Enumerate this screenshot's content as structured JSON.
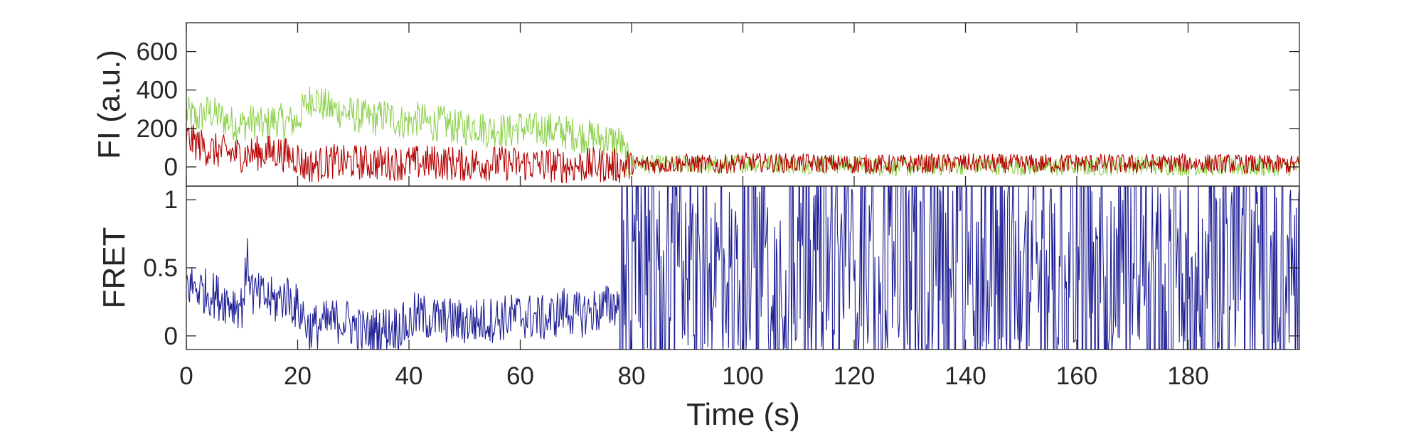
{
  "chart_data": [
    {
      "type": "line",
      "title": "",
      "xlabel": "",
      "ylabel": "FI (a.u.)",
      "xlim": [
        0,
        200
      ],
      "ylim": [
        -100,
        750
      ],
      "yticks": [
        0,
        200,
        400,
        600
      ],
      "ytick_labels": [
        "0",
        "200",
        "400",
        "600"
      ],
      "grid": false,
      "legend": "none",
      "series": [
        {
          "color": "#8fd14f",
          "x": [
            0,
            2,
            4,
            6,
            8,
            10,
            12,
            14,
            16,
            18,
            20,
            21,
            22,
            23,
            24,
            26,
            28,
            30,
            32,
            34,
            36,
            38,
            40,
            42,
            44,
            46,
            48,
            50,
            52,
            54,
            56,
            58,
            60,
            62,
            64,
            66,
            68,
            70,
            72,
            74,
            76,
            78,
            79,
            80,
            85,
            90,
            95,
            100,
            110,
            120,
            130,
            140,
            150,
            160,
            170,
            180,
            190,
            200
          ],
          "values": [
            280,
            250,
            290,
            260,
            230,
            220,
            240,
            210,
            250,
            230,
            240,
            300,
            340,
            370,
            330,
            300,
            290,
            270,
            260,
            250,
            270,
            240,
            230,
            250,
            220,
            230,
            210,
            200,
            220,
            190,
            200,
            180,
            210,
            190,
            200,
            190,
            180,
            170,
            160,
            150,
            140,
            130,
            40,
            20,
            10,
            15,
            5,
            20,
            15,
            10,
            0,
            10,
            5,
            0,
            10,
            5,
            0,
            0
          ]
        },
        {
          "color": "#b30000",
          "x": [
            0,
            2,
            4,
            6,
            8,
            10,
            12,
            14,
            16,
            18,
            20,
            21,
            22,
            24,
            26,
            28,
            30,
            35,
            40,
            45,
            50,
            55,
            60,
            65,
            70,
            75,
            78,
            80,
            85,
            90,
            95,
            100,
            110,
            120,
            130,
            140,
            150,
            160,
            170,
            180,
            190,
            200
          ],
          "values": [
            150,
            120,
            90,
            80,
            70,
            65,
            70,
            75,
            80,
            60,
            50,
            10,
            5,
            15,
            30,
            20,
            25,
            20,
            20,
            25,
            15,
            20,
            15,
            10,
            5,
            10,
            5,
            10,
            15,
            20,
            10,
            25,
            20,
            15,
            15,
            20,
            15,
            20,
            15,
            20,
            15,
            10
          ]
        }
      ]
    },
    {
      "type": "line",
      "title": "",
      "xlabel": "Time (s)",
      "ylabel": "FRET",
      "xlim": [
        0,
        200
      ],
      "ylim": [
        -0.1,
        1.1
      ],
      "yticks": [
        0,
        0.5,
        1
      ],
      "ytick_labels": [
        "0",
        "0.5",
        "1"
      ],
      "xticks": [
        0,
        20,
        40,
        60,
        80,
        100,
        120,
        140,
        160,
        180
      ],
      "xtick_labels": [
        "0",
        "20",
        "40",
        "60",
        "80",
        "100",
        "120",
        "140",
        "160",
        "180"
      ],
      "grid": false,
      "legend": "none",
      "series": [
        {
          "color": "#1f1f96",
          "x": [
            0,
            2,
            4,
            6,
            8,
            10,
            11,
            12,
            14,
            16,
            18,
            20,
            21,
            22,
            24,
            26,
            28,
            30,
            32,
            35,
            40,
            41,
            45,
            50,
            55,
            60,
            65,
            68,
            70,
            75,
            78,
            80,
            85,
            90,
            100,
            110,
            120,
            130,
            140,
            150,
            160,
            170,
            180,
            190,
            200
          ],
          "values": [
            0.38,
            0.35,
            0.32,
            0.28,
            0.25,
            0.22,
            0.55,
            0.3,
            0.28,
            0.25,
            0.3,
            0.2,
            0.15,
            0.05,
            0.08,
            0.1,
            0.12,
            0.08,
            0.02,
            0.05,
            0.08,
            0.15,
            0.12,
            0.1,
            0.12,
            0.15,
            0.12,
            0.2,
            0.15,
            0.2,
            0.25,
            0.5,
            0.45,
            0.5,
            0.5,
            0.48,
            0.5,
            0.5,
            0.48,
            0.5,
            0.5,
            0.5,
            0.48,
            0.5,
            0.5
          ]
        }
      ]
    }
  ]
}
